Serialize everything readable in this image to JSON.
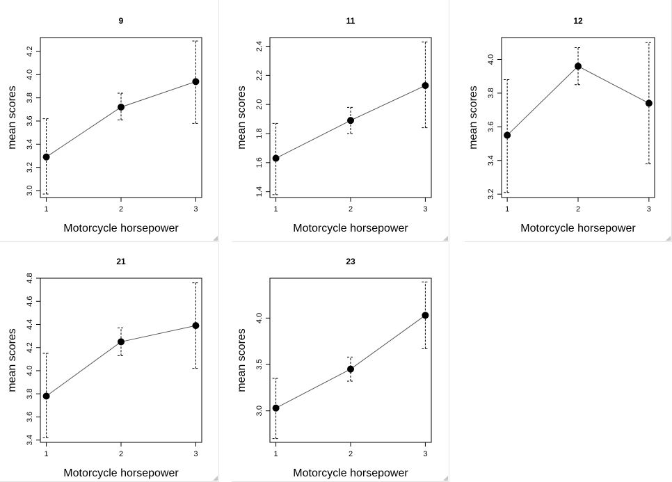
{
  "chart_data": [
    {
      "type": "line",
      "title": "9",
      "xlabel": "Motorcycle horsepower",
      "ylabel": "mean scores",
      "x": [
        1,
        2,
        3
      ],
      "y": [
        3.29,
        3.72,
        3.94
      ],
      "err_low": [
        2.97,
        3.61,
        3.58
      ],
      "err_high": [
        3.62,
        3.84,
        4.29
      ],
      "xticks": [
        "1",
        "2",
        "3"
      ],
      "yticks": [
        3.0,
        3.2,
        3.4,
        3.6,
        3.8,
        4.0,
        4.2
      ],
      "ytick_labels": [
        "3.0",
        "3.2",
        "3.4",
        "3.6",
        "3.8",
        "4.0",
        "4.2"
      ],
      "ylim": [
        2.94,
        4.32
      ],
      "error_bars": true,
      "grid": false
    },
    {
      "type": "line",
      "title": "11",
      "xlabel": "Motorcycle horsepower",
      "ylabel": "mean scores",
      "x": [
        1,
        2,
        3
      ],
      "y": [
        1.63,
        1.89,
        2.13
      ],
      "err_low": [
        1.38,
        1.8,
        1.84
      ],
      "err_high": [
        1.87,
        1.98,
        2.43
      ],
      "xticks": [
        "1",
        "2",
        "3"
      ],
      "yticks": [
        1.4,
        1.6,
        1.8,
        2.0,
        2.2,
        2.4
      ],
      "ytick_labels": [
        "1.4",
        "1.6",
        "1.8",
        "2.0",
        "2.2",
        "2.4"
      ],
      "ylim": [
        1.36,
        2.46
      ],
      "error_bars": true,
      "grid": false
    },
    {
      "type": "line",
      "title": "12",
      "xlabel": "Motorcycle horsepower",
      "ylabel": "mean scores",
      "x": [
        1,
        2,
        3
      ],
      "y": [
        3.55,
        3.96,
        3.74
      ],
      "err_low": [
        3.21,
        3.85,
        3.38
      ],
      "err_high": [
        3.88,
        4.07,
        4.1
      ],
      "xticks": [
        "1",
        "2",
        "3"
      ],
      "yticks": [
        3.2,
        3.4,
        3.6,
        3.8,
        4.0
      ],
      "ytick_labels": [
        "3.2",
        "3.4",
        "3.6",
        "3.8",
        "4.0"
      ],
      "ylim": [
        3.18,
        4.13
      ],
      "error_bars": true,
      "grid": false
    },
    {
      "type": "line",
      "title": "21",
      "xlabel": "Motorcycle horsepower",
      "ylabel": "mean scores",
      "x": [
        1,
        2,
        3
      ],
      "y": [
        3.78,
        4.25,
        4.39
      ],
      "err_low": [
        3.42,
        4.13,
        4.02
      ],
      "err_high": [
        4.15,
        4.37,
        4.76
      ],
      "xticks": [
        "1",
        "2",
        "3"
      ],
      "yticks": [
        3.4,
        3.6,
        3.8,
        4.0,
        4.2,
        4.4,
        4.6,
        4.8
      ],
      "ytick_labels": [
        "3.4",
        "3.6",
        "3.8",
        "4.0",
        "4.2",
        "4.4",
        "4.6",
        "4.8"
      ],
      "ylim": [
        3.38,
        4.8
      ],
      "error_bars": true,
      "grid": false
    },
    {
      "type": "line",
      "title": "23",
      "xlabel": "Motorcycle horsepower",
      "ylabel": "mean scores",
      "x": [
        1,
        2,
        3
      ],
      "y": [
        3.03,
        3.45,
        4.03
      ],
      "err_low": [
        2.7,
        3.32,
        3.67
      ],
      "err_high": [
        3.35,
        3.58,
        4.39
      ],
      "xticks": [
        "1",
        "2",
        "3"
      ],
      "yticks": [
        3.0,
        3.5,
        4.0
      ],
      "ytick_labels": [
        "3.0",
        "3.5",
        "4.0"
      ],
      "ylim": [
        2.66,
        4.43
      ],
      "error_bars": true,
      "grid": false
    }
  ]
}
